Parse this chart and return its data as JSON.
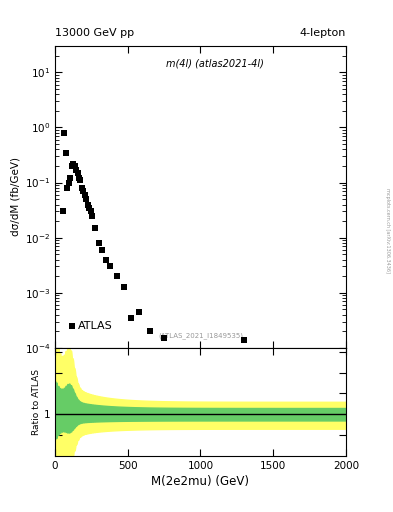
{
  "title_left": "13000 GeV pp",
  "title_right": "4-lepton",
  "main_label": "m(4l) (atlas2021-4l)",
  "atlas_label": "ATLAS",
  "ref_label": "(ATLAS_2021_I1849535)",
  "ylabel_main": "dσ/dM (fb/GeV)",
  "ylabel_ratio": "Ratio to ATLAS",
  "xlabel": "M(2e2mu) (GeV)",
  "side_text": "mcplots.cern.ch [arXiv:1306.3436]",
  "xlim": [
    0,
    2000
  ],
  "ylim_main": [
    0.0001,
    30
  ],
  "ylim_ratio": [
    0.0,
    2.6
  ],
  "data_x": [
    55,
    65,
    75,
    85,
    95,
    105,
    115,
    125,
    135,
    145,
    155,
    165,
    175,
    185,
    195,
    205,
    215,
    225,
    235,
    245,
    255,
    275,
    300,
    325,
    350,
    375,
    425,
    475,
    525,
    575,
    650,
    750,
    1300
  ],
  "data_y": [
    0.03,
    0.8,
    0.35,
    0.08,
    0.1,
    0.12,
    0.2,
    0.22,
    0.2,
    0.17,
    0.15,
    0.12,
    0.11,
    0.08,
    0.07,
    0.06,
    0.05,
    0.04,
    0.035,
    0.03,
    0.025,
    0.015,
    0.008,
    0.006,
    0.004,
    0.003,
    0.002,
    0.0013,
    0.00035,
    0.00045,
    0.0002,
    0.00015,
    0.00014
  ],
  "marker_color": "black",
  "marker_size": 5,
  "green_color": "#66CC66",
  "yellow_color": "#FFFF66",
  "ratio_line_y": 1.0,
  "bg_color": "#ffffff"
}
